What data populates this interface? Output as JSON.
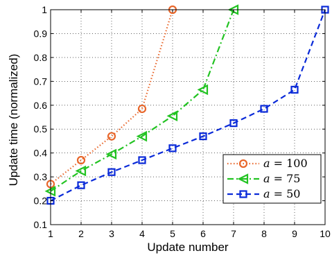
{
  "chart_data": {
    "type": "line",
    "title": "",
    "xlabel": "Update number",
    "ylabel": "Update time (normalized)",
    "xlim": [
      1,
      10
    ],
    "ylim": [
      0.1,
      1.0
    ],
    "xticks": [
      "1",
      "2",
      "3",
      "4",
      "5",
      "6",
      "7",
      "8",
      "9",
      "10"
    ],
    "yticks": [
      "0.1",
      "0.2",
      "0.3",
      "0.4",
      "0.5",
      "0.6",
      "0.7",
      "0.8",
      "0.9",
      "1"
    ],
    "grid": true,
    "legend_position": "lower-right",
    "series": [
      {
        "name": "a = 100",
        "legend_var": "a",
        "legend_value": "= 100",
        "color": "#e8662a",
        "linestyle": "dotted",
        "marker": "circle",
        "x": [
          1,
          2,
          3,
          4,
          5
        ],
        "y": [
          0.27,
          0.37,
          0.47,
          0.585,
          1.0
        ]
      },
      {
        "name": "a = 75",
        "legend_var": "a",
        "legend_value": "= 75",
        "color": "#22c322",
        "linestyle": "dashdot",
        "marker": "triangle-left",
        "x": [
          1,
          2,
          3,
          4,
          5,
          6,
          7
        ],
        "y": [
          0.24,
          0.325,
          0.395,
          0.47,
          0.555,
          0.665,
          1.0
        ]
      },
      {
        "name": "a = 50",
        "legend_var": "a",
        "legend_value": "= 50",
        "color": "#0a2ad8",
        "linestyle": "dashed",
        "marker": "square",
        "x": [
          1,
          2,
          3,
          4,
          5,
          6,
          7,
          8,
          9,
          10
        ],
        "y": [
          0.2,
          0.265,
          0.32,
          0.37,
          0.42,
          0.47,
          0.525,
          0.585,
          0.665,
          1.0
        ]
      }
    ]
  }
}
